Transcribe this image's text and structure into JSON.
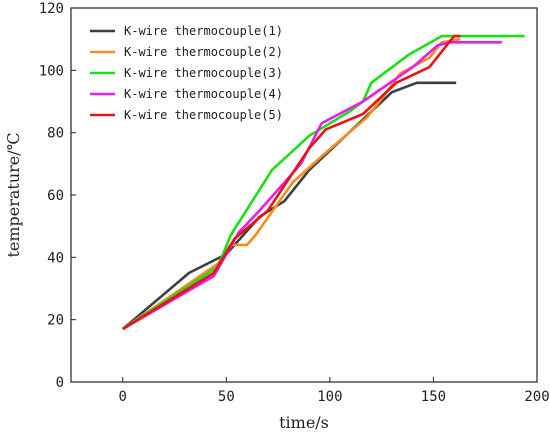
{
  "chart_data": {
    "type": "line",
    "xlabel": "time/s",
    "ylabel": "temperature/℃",
    "xlim": [
      -25,
      200
    ],
    "ylim": [
      0,
      120
    ],
    "xticks": [
      0,
      50,
      100,
      150,
      200
    ],
    "yticks": [
      0,
      20,
      40,
      60,
      80,
      100,
      120
    ],
    "grid": false,
    "legend_position": "top-left",
    "series": [
      {
        "name": "K-wire thermocouple(1)",
        "color": "#3f3f3f",
        "points": [
          [
            0,
            17
          ],
          [
            32,
            35
          ],
          [
            50,
            41
          ],
          [
            66,
            53
          ],
          [
            78,
            58
          ],
          [
            90,
            68
          ],
          [
            130,
            93
          ],
          [
            142,
            96
          ],
          [
            161,
            96
          ]
        ]
      },
      {
        "name": "K-wire thermocouple(2)",
        "color": "#f28e1e",
        "points": [
          [
            0,
            17
          ],
          [
            46,
            38
          ],
          [
            52,
            44
          ],
          [
            60,
            44
          ],
          [
            64,
            47
          ],
          [
            82,
            64
          ],
          [
            97,
            73
          ],
          [
            118,
            85
          ],
          [
            124,
            90
          ],
          [
            134,
            99
          ],
          [
            148,
            104
          ],
          [
            154,
            109
          ],
          [
            163,
            110
          ]
        ]
      },
      {
        "name": "K-wire thermocouple(3)",
        "color": "#1adf1a",
        "points": [
          [
            0,
            17
          ],
          [
            46,
            37
          ],
          [
            52,
            47
          ],
          [
            72,
            68
          ],
          [
            90,
            79
          ],
          [
            110,
            87
          ],
          [
            116,
            90
          ],
          [
            120,
            96
          ],
          [
            138,
            105
          ],
          [
            154,
            111
          ],
          [
            194,
            111
          ]
        ]
      },
      {
        "name": "K-wire thermocouple(4)",
        "color": "#e81ee8",
        "points": [
          [
            0,
            17
          ],
          [
            44,
            34
          ],
          [
            56,
            48
          ],
          [
            66,
            55
          ],
          [
            86,
            70
          ],
          [
            96,
            83
          ],
          [
            116,
            90
          ],
          [
            140,
            101
          ],
          [
            152,
            108
          ],
          [
            158,
            109
          ],
          [
            183,
            109
          ]
        ]
      },
      {
        "name": "K-wire thermocouple(5)",
        "color": "#e81414",
        "points": [
          [
            0,
            17
          ],
          [
            44,
            35
          ],
          [
            54,
            46
          ],
          [
            70,
            55
          ],
          [
            82,
            67
          ],
          [
            90,
            75
          ],
          [
            98,
            81
          ],
          [
            116,
            86
          ],
          [
            132,
            96
          ],
          [
            148,
            101
          ],
          [
            160,
            111
          ],
          [
            163,
            111
          ]
        ]
      }
    ]
  }
}
